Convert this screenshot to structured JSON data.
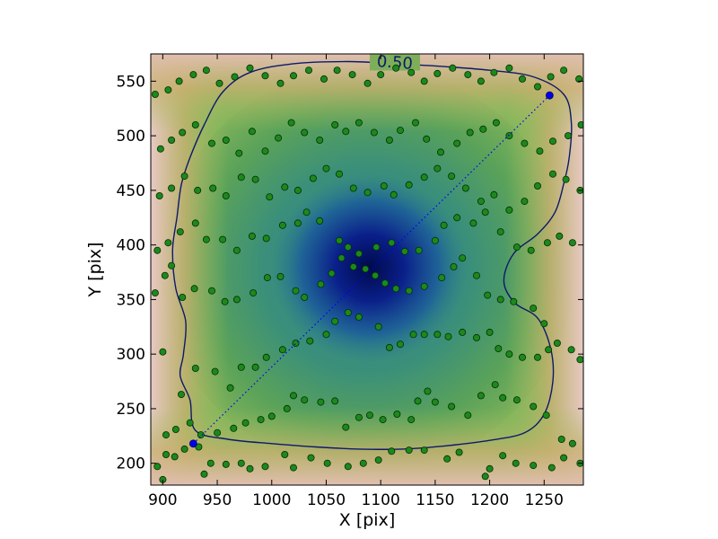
{
  "chart_data": {
    "type": "scatter",
    "title": "",
    "xlabel": "X [pix]",
    "ylabel": "Y [pix]",
    "xlim": [
      889,
      1286
    ],
    "ylim": [
      180,
      575
    ],
    "x_ticks": [
      900,
      950,
      1000,
      1050,
      1100,
      1150,
      1200,
      1250
    ],
    "y_ticks": [
      200,
      250,
      300,
      350,
      400,
      450,
      500,
      550
    ],
    "background": "density map, low values dark blue at center (~1092, 375), rising through teal and green to tan/pink near edges",
    "contour": {
      "level_label": "0.50",
      "color": "#0c1a6b",
      "path": [
        [
          925,
          258
        ],
        [
          916,
          280
        ],
        [
          919,
          300
        ],
        [
          921,
          330
        ],
        [
          912,
          360
        ],
        [
          909,
          395
        ],
        [
          913,
          425
        ],
        [
          917,
          455
        ],
        [
          925,
          480
        ],
        [
          938,
          510
        ],
        [
          955,
          540
        ],
        [
          980,
          558
        ],
        [
          1020,
          566
        ],
        [
          1070,
          568
        ],
        [
          1110,
          566
        ],
        [
          1150,
          564
        ],
        [
          1200,
          560
        ],
        [
          1240,
          554
        ],
        [
          1268,
          538
        ],
        [
          1275,
          512
        ],
        [
          1273,
          480
        ],
        [
          1268,
          456
        ],
        [
          1260,
          430
        ],
        [
          1244,
          410
        ],
        [
          1222,
          392
        ],
        [
          1213,
          367
        ],
        [
          1223,
          347
        ],
        [
          1244,
          333
        ],
        [
          1256,
          305
        ],
        [
          1258,
          275
        ],
        [
          1250,
          245
        ],
        [
          1232,
          228
        ],
        [
          1200,
          221
        ],
        [
          1160,
          216
        ],
        [
          1120,
          213
        ],
        [
          1080,
          213
        ],
        [
          1040,
          215
        ],
        [
          1000,
          218
        ],
        [
          960,
          222
        ],
        [
          930,
          230
        ],
        [
          925,
          258
        ]
      ]
    },
    "diagonal": {
      "color": "#0000ee",
      "endpoints": [
        [
          928,
          218
        ],
        [
          1255,
          537
        ]
      ]
    },
    "points_color": "#1a8a1a",
    "points": [
      [
        900,
        185
      ],
      [
        895,
        197
      ],
      [
        903,
        208
      ],
      [
        911,
        206
      ],
      [
        920,
        213
      ],
      [
        933,
        215
      ],
      [
        938,
        190
      ],
      [
        944,
        200
      ],
      [
        958,
        199
      ],
      [
        972,
        200
      ],
      [
        980,
        195
      ],
      [
        994,
        197
      ],
      [
        1012,
        208
      ],
      [
        1020,
        196
      ],
      [
        1036,
        205
      ],
      [
        1051,
        200
      ],
      [
        1070,
        197
      ],
      [
        1084,
        200
      ],
      [
        1098,
        203
      ],
      [
        1110,
        211
      ],
      [
        1126,
        212
      ],
      [
        1140,
        212
      ],
      [
        1161,
        204
      ],
      [
        1172,
        210
      ],
      [
        1196,
        188
      ],
      [
        1200,
        195
      ],
      [
        1212,
        207
      ],
      [
        1224,
        200
      ],
      [
        1240,
        198
      ],
      [
        1257,
        196
      ],
      [
        1268,
        205
      ],
      [
        1283,
        200
      ],
      [
        903,
        226
      ],
      [
        912,
        231
      ],
      [
        925,
        237
      ],
      [
        935,
        226
      ],
      [
        950,
        228
      ],
      [
        965,
        232
      ],
      [
        976,
        237
      ],
      [
        990,
        240
      ],
      [
        1000,
        243
      ],
      [
        1014,
        250
      ],
      [
        1020,
        262
      ],
      [
        1030,
        258
      ],
      [
        1045,
        256
      ],
      [
        1058,
        257
      ],
      [
        1068,
        233
      ],
      [
        1080,
        242
      ],
      [
        1090,
        244
      ],
      [
        1102,
        240
      ],
      [
        1115,
        245
      ],
      [
        1128,
        240
      ],
      [
        1134,
        257
      ],
      [
        1143,
        266
      ],
      [
        1150,
        256
      ],
      [
        1165,
        252
      ],
      [
        1180,
        244
      ],
      [
        1192,
        262
      ],
      [
        1205,
        272
      ],
      [
        1212,
        260
      ],
      [
        1225,
        258
      ],
      [
        1240,
        252
      ],
      [
        1252,
        244
      ],
      [
        1266,
        222
      ],
      [
        1276,
        218
      ],
      [
        900,
        302
      ],
      [
        917,
        263
      ],
      [
        930,
        287
      ],
      [
        948,
        284
      ],
      [
        962,
        269
      ],
      [
        972,
        288
      ],
      [
        985,
        288
      ],
      [
        995,
        297
      ],
      [
        1010,
        304
      ],
      [
        1022,
        310
      ],
      [
        1035,
        312
      ],
      [
        1050,
        318
      ],
      [
        1058,
        330
      ],
      [
        1070,
        338
      ],
      [
        1080,
        334
      ],
      [
        1098,
        325
      ],
      [
        1108,
        306
      ],
      [
        1118,
        309
      ],
      [
        1130,
        318
      ],
      [
        1140,
        318
      ],
      [
        1152,
        318
      ],
      [
        1162,
        316
      ],
      [
        1175,
        320
      ],
      [
        1188,
        315
      ],
      [
        1200,
        320
      ],
      [
        1208,
        305
      ],
      [
        1218,
        300
      ],
      [
        1230,
        297
      ],
      [
        1244,
        297
      ],
      [
        1254,
        304
      ],
      [
        1262,
        310
      ],
      [
        1275,
        304
      ],
      [
        1283,
        295
      ],
      [
        893,
        356
      ],
      [
        902,
        372
      ],
      [
        908,
        381
      ],
      [
        918,
        352
      ],
      [
        929,
        360
      ],
      [
        945,
        358
      ],
      [
        957,
        348
      ],
      [
        968,
        350
      ],
      [
        983,
        356
      ],
      [
        996,
        370
      ],
      [
        1008,
        371
      ],
      [
        1022,
        358
      ],
      [
        1030,
        352
      ],
      [
        1045,
        364
      ],
      [
        1055,
        374
      ],
      [
        1064,
        388
      ],
      [
        1075,
        380
      ],
      [
        1086,
        378
      ],
      [
        1095,
        372
      ],
      [
        1104,
        365
      ],
      [
        1114,
        360
      ],
      [
        1126,
        358
      ],
      [
        1140,
        362
      ],
      [
        1156,
        370
      ],
      [
        1167,
        380
      ],
      [
        1175,
        388
      ],
      [
        1188,
        372
      ],
      [
        1198,
        354
      ],
      [
        1210,
        350
      ],
      [
        1222,
        348
      ],
      [
        1240,
        342
      ],
      [
        1250,
        328
      ],
      [
        895,
        395
      ],
      [
        905,
        402
      ],
      [
        916,
        412
      ],
      [
        930,
        420
      ],
      [
        940,
        405
      ],
      [
        955,
        405
      ],
      [
        968,
        395
      ],
      [
        982,
        408
      ],
      [
        995,
        406
      ],
      [
        1010,
        418
      ],
      [
        1024,
        420
      ],
      [
        1032,
        430
      ],
      [
        1044,
        422
      ],
      [
        1062,
        404
      ],
      [
        1070,
        398
      ],
      [
        1080,
        392
      ],
      [
        1096,
        398
      ],
      [
        1110,
        402
      ],
      [
        1122,
        394
      ],
      [
        1135,
        395
      ],
      [
        1150,
        404
      ],
      [
        1158,
        418
      ],
      [
        1170,
        425
      ],
      [
        1185,
        420
      ],
      [
        1196,
        430
      ],
      [
        1210,
        412
      ],
      [
        1225,
        398
      ],
      [
        1238,
        395
      ],
      [
        1253,
        402
      ],
      [
        1264,
        408
      ],
      [
        1276,
        402
      ],
      [
        897,
        445
      ],
      [
        908,
        452
      ],
      [
        920,
        463
      ],
      [
        932,
        450
      ],
      [
        946,
        452
      ],
      [
        958,
        445
      ],
      [
        972,
        462
      ],
      [
        985,
        460
      ],
      [
        998,
        444
      ],
      [
        1012,
        453
      ],
      [
        1024,
        450
      ],
      [
        1038,
        461
      ],
      [
        1050,
        470
      ],
      [
        1062,
        465
      ],
      [
        1075,
        452
      ],
      [
        1088,
        448
      ],
      [
        1103,
        454
      ],
      [
        1112,
        446
      ],
      [
        1126,
        455
      ],
      [
        1140,
        462
      ],
      [
        1152,
        470
      ],
      [
        1165,
        463
      ],
      [
        1178,
        452
      ],
      [
        1192,
        440
      ],
      [
        1204,
        446
      ],
      [
        1218,
        432
      ],
      [
        1232,
        440
      ],
      [
        1244,
        454
      ],
      [
        1258,
        465
      ],
      [
        1270,
        460
      ],
      [
        1283,
        450
      ],
      [
        898,
        488
      ],
      [
        908,
        496
      ],
      [
        918,
        503
      ],
      [
        930,
        510
      ],
      [
        945,
        493
      ],
      [
        958,
        496
      ],
      [
        970,
        484
      ],
      [
        982,
        504
      ],
      [
        994,
        486
      ],
      [
        1006,
        498
      ],
      [
        1018,
        512
      ],
      [
        1030,
        503
      ],
      [
        1044,
        496
      ],
      [
        1058,
        510
      ],
      [
        1068,
        504
      ],
      [
        1080,
        512
      ],
      [
        1094,
        503
      ],
      [
        1108,
        496
      ],
      [
        1118,
        505
      ],
      [
        1132,
        512
      ],
      [
        1142,
        497
      ],
      [
        1155,
        485
      ],
      [
        1170,
        493
      ],
      [
        1182,
        503
      ],
      [
        1194,
        506
      ],
      [
        1206,
        512
      ],
      [
        1218,
        500
      ],
      [
        1232,
        493
      ],
      [
        1246,
        486
      ],
      [
        1258,
        495
      ],
      [
        1272,
        500
      ],
      [
        1284,
        510
      ],
      [
        893,
        538
      ],
      [
        905,
        542
      ],
      [
        915,
        550
      ],
      [
        928,
        556
      ],
      [
        940,
        560
      ],
      [
        952,
        548
      ],
      [
        966,
        554
      ],
      [
        980,
        562
      ],
      [
        994,
        555
      ],
      [
        1008,
        548
      ],
      [
        1020,
        555
      ],
      [
        1034,
        560
      ],
      [
        1048,
        552
      ],
      [
        1060,
        560
      ],
      [
        1074,
        556
      ],
      [
        1088,
        548
      ],
      [
        1100,
        556
      ],
      [
        1114,
        562
      ],
      [
        1128,
        558
      ],
      [
        1140,
        550
      ],
      [
        1152,
        557
      ],
      [
        1166,
        562
      ],
      [
        1180,
        556
      ],
      [
        1192,
        550
      ],
      [
        1204,
        558
      ],
      [
        1218,
        562
      ],
      [
        1230,
        552
      ],
      [
        1244,
        545
      ],
      [
        1256,
        554
      ],
      [
        1268,
        560
      ],
      [
        1282,
        552
      ]
    ]
  }
}
